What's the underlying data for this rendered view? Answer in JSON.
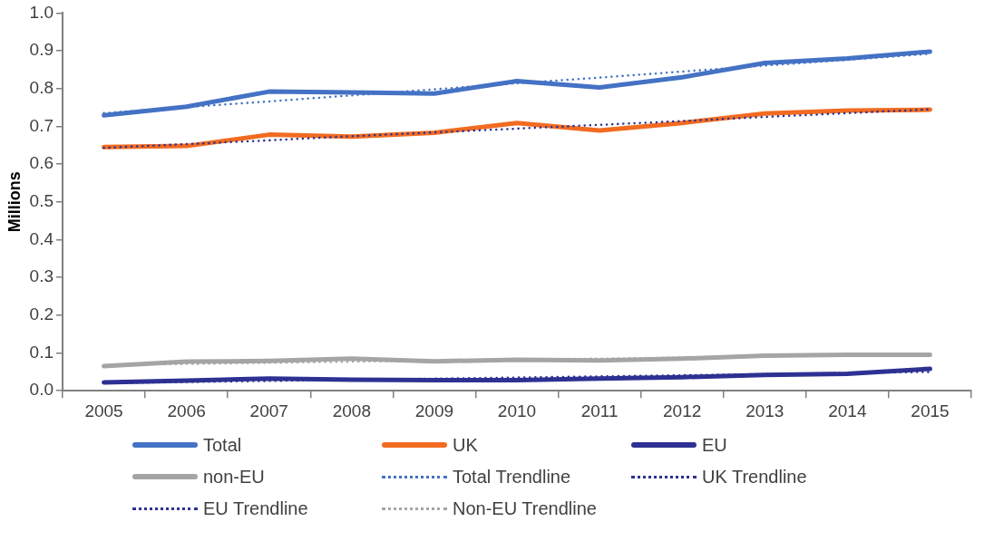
{
  "chart_data": {
    "type": "line",
    "ylabel": "Millions",
    "categories": [
      "2005",
      "2006",
      "2007",
      "2008",
      "2009",
      "2010",
      "2011",
      "2012",
      "2013",
      "2014",
      "2015"
    ],
    "ylim": [
      0,
      1
    ],
    "yticks": [
      {
        "value": 0,
        "label": "0.0"
      },
      {
        "value": 0.1,
        "label": "0.1"
      },
      {
        "value": 0.2,
        "label": "0.2"
      },
      {
        "value": 0.3,
        "label": "0.3"
      },
      {
        "value": 0.4,
        "label": "0.4"
      },
      {
        "value": 0.5,
        "label": "0.5"
      },
      {
        "value": 0.6,
        "label": "0.6"
      },
      {
        "value": 0.7,
        "label": "0.7"
      },
      {
        "value": 0.8,
        "label": "0.8"
      },
      {
        "value": 0.9,
        "label": "0.9"
      },
      {
        "value": 1,
        "label": "1.0"
      }
    ],
    "grid": false,
    "legend": "bottom",
    "marker": "none",
    "series": [
      {
        "name": "Total",
        "color": "#4472c4",
        "line_style": "solid",
        "values": [
          0.729,
          0.752,
          0.792,
          0.79,
          0.787,
          0.82,
          0.803,
          0.83,
          0.868,
          0.88,
          0.898
        ]
      },
      {
        "name": "UK",
        "color": "#f26b21",
        "line_style": "solid",
        "values": [
          0.645,
          0.648,
          0.678,
          0.673,
          0.683,
          0.709,
          0.689,
          0.709,
          0.734,
          0.742,
          0.744
        ]
      },
      {
        "name": "EU",
        "color": "#2e3192",
        "line_style": "solid",
        "values": [
          0.022,
          0.027,
          0.032,
          0.029,
          0.028,
          0.028,
          0.032,
          0.036,
          0.042,
          0.045,
          0.058
        ]
      },
      {
        "name": "non-EU",
        "color": "#a5a5a5",
        "line_style": "solid",
        "values": [
          0.065,
          0.077,
          0.079,
          0.085,
          0.078,
          0.082,
          0.08,
          0.085,
          0.093,
          0.095,
          0.095
        ]
      },
      {
        "name": "Total Trendline",
        "color": "#4472c4",
        "line_style": "dotted",
        "values": [
          0.735,
          0.751,
          0.766,
          0.782,
          0.798,
          0.814,
          0.829,
          0.845,
          0.861,
          0.876,
          0.892
        ]
      },
      {
        "name": "UK Trendline",
        "color": "#2e3192",
        "line_style": "dotted",
        "values": [
          0.643,
          0.653,
          0.663,
          0.674,
          0.684,
          0.694,
          0.704,
          0.714,
          0.725,
          0.735,
          0.745
        ]
      },
      {
        "name": "EU Trendline",
        "color": "#2e3192",
        "line_style": "dotted",
        "values": [
          0.02,
          0.023,
          0.026,
          0.029,
          0.032,
          0.035,
          0.038,
          0.041,
          0.044,
          0.047,
          0.05
        ]
      },
      {
        "name": "Non-EU Trendline",
        "color": "#a5a5a5",
        "line_style": "dotted",
        "values": [
          0.068,
          0.071,
          0.074,
          0.077,
          0.08,
          0.083,
          0.085,
          0.088,
          0.091,
          0.094,
          0.097
        ]
      }
    ]
  }
}
